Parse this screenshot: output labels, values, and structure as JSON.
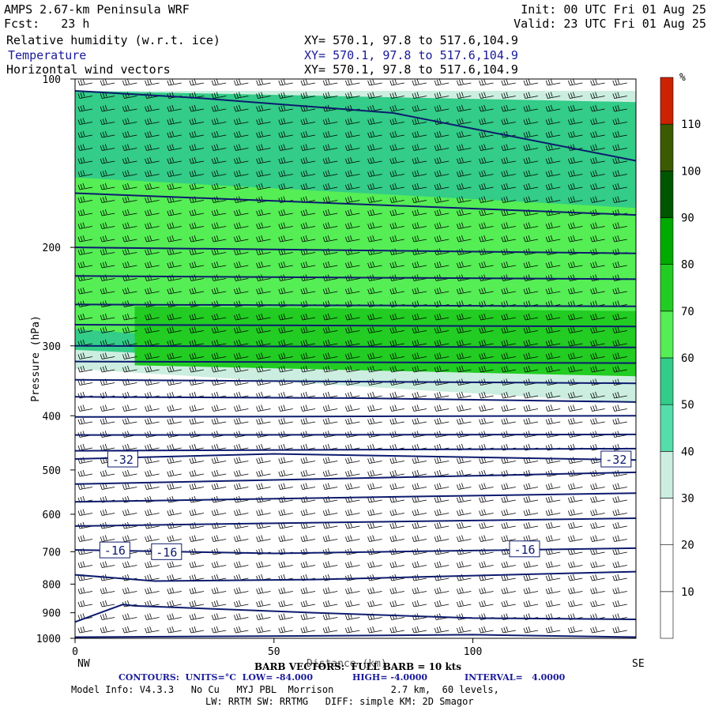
{
  "header": {
    "model": "AMPS 2.67-km Peninsula WRF",
    "fcst": "Fcst:   23 h",
    "init": "Init: 00 UTC Fri 01 Aug 25",
    "valid": "Valid: 23 UTC Fri 01 Aug 25",
    "fields": [
      {
        "label": "Relative humidity (w.r.t. ice)",
        "xy": "XY= 570.1, 97.8 to 517.6,104.9"
      },
      {
        "label": "Temperature",
        "xy": "XY= 570.1, 97.8 to 517.6,104.9"
      },
      {
        "label": "Horizontal wind vectors",
        "xy": "XY= 570.1, 97.8 to 517.6,104.9"
      }
    ]
  },
  "footer": {
    "nw": "NW",
    "se": "SE",
    "barb": "BARB VECTORS:  FULL BARB = 10 kts",
    "xaxis_overlay": "Distance (km)",
    "contours_a": "CONTOURS:  UNITS=°C  LOW= -84.000",
    "contours_b": "HIGH= -4.0000",
    "contours_c": "INTERVAL=   4.0000",
    "model_info": "Model Info: V4.3.3   No Cu   MYJ PBL  Morrison          2.7 km,  60 levels,",
    "model_info2": "LW: RRTM SW: RRTMG   DIFF: simple KM: 2D Smagor"
  },
  "chart_data": {
    "type": "heatmap",
    "ylabel": "Pressure (hPa)",
    "xlabel": "Distance (km)",
    "x_ticks": [
      0,
      50,
      100
    ],
    "y_ticks": [
      100,
      200,
      300,
      400,
      500,
      600,
      700,
      800,
      900,
      1000
    ],
    "xlim": [
      0,
      141
    ],
    "ylim": [
      1000,
      100
    ],
    "y_scale": "log-pressure",
    "colorbar": {
      "unit": "%",
      "levels": [
        10,
        20,
        30,
        40,
        50,
        60,
        70,
        80,
        90,
        100,
        110
      ],
      "colors": [
        "#ffffff",
        "#ffffff",
        "#ffffff",
        "#cceee0",
        "#55ddaa",
        "#33cc88",
        "#55ee55",
        "#22cc22",
        "#00aa00",
        "#005500",
        "#3c5a00",
        "#cc2200"
      ]
    },
    "rh_layers": [
      {
        "level": 30,
        "x": [
          0,
          141
        ],
        "p_top": [
          105,
          105
        ],
        "p_bot": [
          330,
          380
        ]
      },
      {
        "level": 50,
        "x": [
          0,
          141
        ],
        "p_top": [
          105,
          110
        ],
        "p_bot": [
          305,
          340
        ]
      },
      {
        "level": 60,
        "x": [
          0,
          141
        ],
        "p_top": [
          150,
          170
        ],
        "p_bot": [
          280,
          330
        ]
      },
      {
        "level": 70,
        "x": [
          15,
          141
        ],
        "p_top": [
          255,
          260
        ],
        "p_bot": [
          325,
          340
        ]
      }
    ],
    "temperature_contours": [
      {
        "value": -84,
        "x": [
          0,
          30,
          80,
          141
        ],
        "p": [
          105,
          108,
          115,
          140
        ]
      },
      {
        "value": -80,
        "x": [
          0,
          141
        ],
        "p": [
          160,
          175
        ]
      },
      {
        "value": -76,
        "x": [
          0,
          141
        ],
        "p": [
          200,
          205
        ]
      },
      {
        "value": -72,
        "x": [
          0,
          141
        ],
        "p": [
          225,
          228
        ]
      },
      {
        "value": -68,
        "x": [
          0,
          141
        ],
        "p": [
          253,
          255
        ]
      },
      {
        "value": -64,
        "x": [
          0,
          141
        ],
        "p": [
          275,
          277
        ]
      },
      {
        "value": -60,
        "x": [
          0,
          141
        ],
        "p": [
          300,
          302
        ]
      },
      {
        "value": -56,
        "x": [
          0,
          141
        ],
        "p": [
          320,
          322
        ]
      },
      {
        "value": -52,
        "x": [
          0,
          141
        ],
        "p": [
          345,
          350
        ]
      },
      {
        "value": -48,
        "x": [
          0,
          70,
          141
        ],
        "p": [
          370,
          372,
          378
        ]
      },
      {
        "value": -44,
        "x": [
          0,
          141
        ],
        "p": [
          402,
          400
        ]
      },
      {
        "value": -40,
        "x": [
          0,
          141
        ],
        "p": [
          433,
          432
        ]
      },
      {
        "value": -36,
        "x": [
          0,
          141
        ],
        "p": [
          462,
          458
        ]
      },
      {
        "value": -32,
        "x": [
          0,
          50,
          141
        ],
        "p": [
          478,
          468,
          480
        ]
      },
      {
        "value": -28,
        "x": [
          0,
          141
        ],
        "p": [
          530,
          505
        ]
      },
      {
        "value": -24,
        "x": [
          0,
          141
        ],
        "p": [
          570,
          550
        ]
      },
      {
        "value": -20,
        "x": [
          0,
          141
        ],
        "p": [
          630,
          610
        ]
      },
      {
        "value": -16,
        "x": [
          0,
          50,
          141
        ],
        "p": [
          695,
          705,
          690
        ]
      },
      {
        "value": -12,
        "x": [
          0,
          20,
          60,
          141
        ],
        "p": [
          770,
          790,
          785,
          760
        ]
      },
      {
        "value": -8,
        "x": [
          0,
          12,
          15,
          60,
          100,
          141
        ],
        "p": [
          935,
          870,
          875,
          900,
          920,
          925
        ]
      },
      {
        "value": -4,
        "x": [
          0,
          60,
          100,
          141
        ],
        "p": [
          995,
          990,
          985,
          995
        ]
      }
    ],
    "contour_labels": [
      {
        "text": "-32",
        "x": 12,
        "p": 478
      },
      {
        "text": "-32",
        "x": 136,
        "p": 478
      },
      {
        "text": "-16",
        "x": 10,
        "p": 695
      },
      {
        "text": "-16",
        "x": 23,
        "p": 700
      },
      {
        "text": "-16",
        "x": 113,
        "p": 692
      }
    ]
  }
}
